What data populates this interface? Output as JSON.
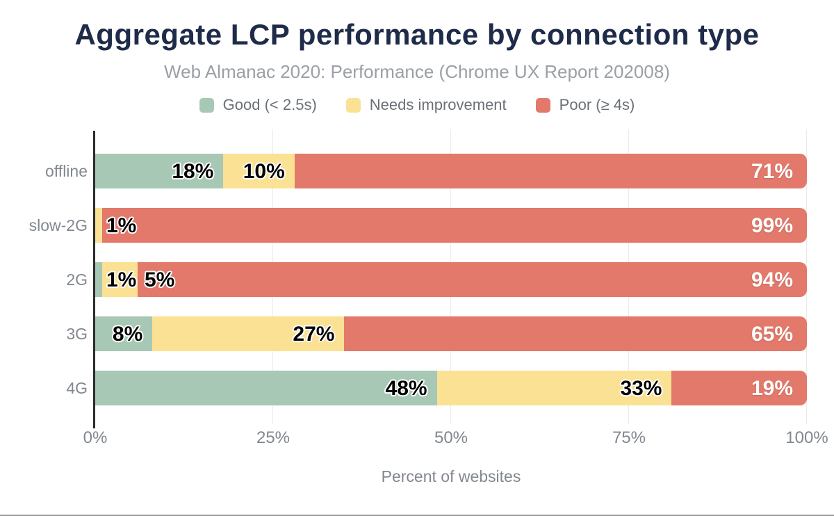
{
  "title": "Aggregate LCP performance by connection type",
  "subtitle": "Web Almanac 2020: Performance (Chrome UX Report 202008)",
  "colors": {
    "title_text": "#1e2b49",
    "subtitle_text": "#9aa0a6",
    "legend_text": "#6b7077",
    "axis_text": "#82878f",
    "axis_line": "#2b2b2b",
    "gridline": "#ebebeb",
    "good": "#a7c8b5",
    "needs_improvement": "#fbe193",
    "poor": "#e2796b"
  },
  "chart_data": {
    "type": "bar",
    "orientation": "horizontal-stacked",
    "title": "Aggregate LCP performance by connection type",
    "subtitle": "Web Almanac 2020: Performance (Chrome UX Report 202008)",
    "categories": [
      "offline",
      "slow-2G",
      "2G",
      "3G",
      "4G"
    ],
    "series": [
      {
        "name": "Good (< 2.5s)",
        "slug": "good",
        "color": "#a7c8b5",
        "label_color": "black",
        "values": [
          18,
          0,
          1,
          8,
          48
        ]
      },
      {
        "name": "Needs improvement",
        "slug": "needs-improvement",
        "color": "#fbe193",
        "label_color": "black",
        "values": [
          10,
          1,
          5,
          27,
          33
        ]
      },
      {
        "name": "Poor (≥ 4s)",
        "slug": "poor",
        "color": "#e2796b",
        "label_color": "white",
        "values": [
          71,
          99,
          94,
          65,
          19
        ]
      }
    ],
    "value_suffix": "%",
    "xlim": [
      0,
      100
    ],
    "x_tick_values": [
      0,
      25,
      50,
      75,
      100
    ],
    "x_tick_labels": [
      "0%",
      "25%",
      "50%",
      "75%",
      "100%"
    ],
    "xlabel": "Percent of websites",
    "legend_position": "top",
    "grid": "vertical-only"
  }
}
